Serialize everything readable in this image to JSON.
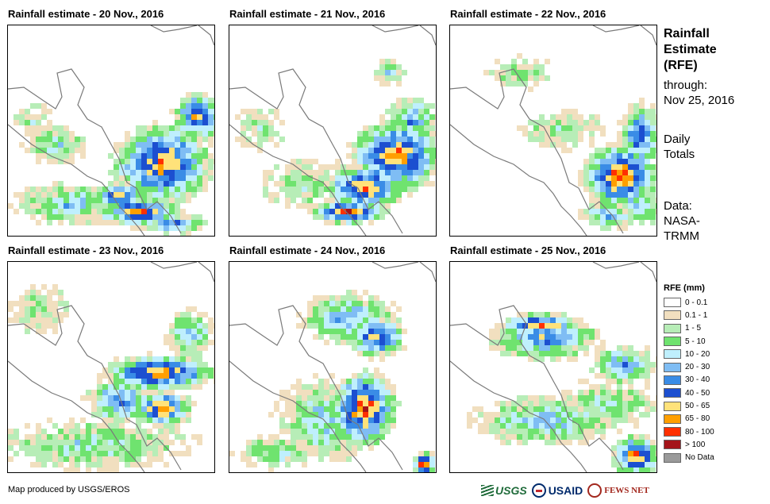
{
  "panels": [
    {
      "title": "Rainfall estimate - 20 Nov., 2016",
      "date": "20 Nov., 2016"
    },
    {
      "title": "Rainfall estimate - 21 Nov., 2016",
      "date": "21 Nov., 2016"
    },
    {
      "title": "Rainfall estimate - 22 Nov., 2016",
      "date": "22 Nov., 2016"
    },
    {
      "title": "Rainfall estimate - 23 Nov., 2016",
      "date": "23 Nov., 2016"
    },
    {
      "title": "Rainfall estimate - 24 Nov., 2016",
      "date": "24 Nov., 2016"
    },
    {
      "title": "Rainfall estimate - 25 Nov., 2016",
      "date": "25 Nov., 2016"
    }
  ],
  "side": {
    "title_lines": [
      "Rainfall",
      "Estimate",
      "(RFE)"
    ],
    "through_label": "through:",
    "through_date": "Nov 25, 2016",
    "totals_lines": [
      "Daily",
      "Totals"
    ],
    "data_lines": [
      "Data:",
      "NASA-",
      "TRMM"
    ]
  },
  "legend": {
    "title": "RFE (mm)",
    "items": [
      {
        "label": "0 - 0.1",
        "color": "#ffffff"
      },
      {
        "label": "0.1 - 1",
        "color": "#f1dfbf"
      },
      {
        "label": "1 - 5",
        "color": "#b7edb7"
      },
      {
        "label": "5 - 10",
        "color": "#6fe36f"
      },
      {
        "label": "10 - 20",
        "color": "#bfeffd"
      },
      {
        "label": "20 - 30",
        "color": "#7fbdf4"
      },
      {
        "label": "30 - 40",
        "color": "#3a8ce6"
      },
      {
        "label": "40 - 50",
        "color": "#1c4fd0"
      },
      {
        "label": "50 - 65",
        "color": "#ffe27a"
      },
      {
        "label": "65 - 80",
        "color": "#ff9f00"
      },
      {
        "label": "80 - 100",
        "color": "#ff3000"
      },
      {
        "label": "> 100",
        "color": "#a4141a"
      },
      {
        "label": "No Data",
        "color": "#9a9a9a"
      }
    ]
  },
  "credit": "Map produced by USGS/EROS",
  "logos": {
    "usgs": "USGS",
    "usaid": "USAID",
    "fews": "FEWS NET"
  },
  "colors": {
    "land_outline": "#7a7a7a"
  }
}
